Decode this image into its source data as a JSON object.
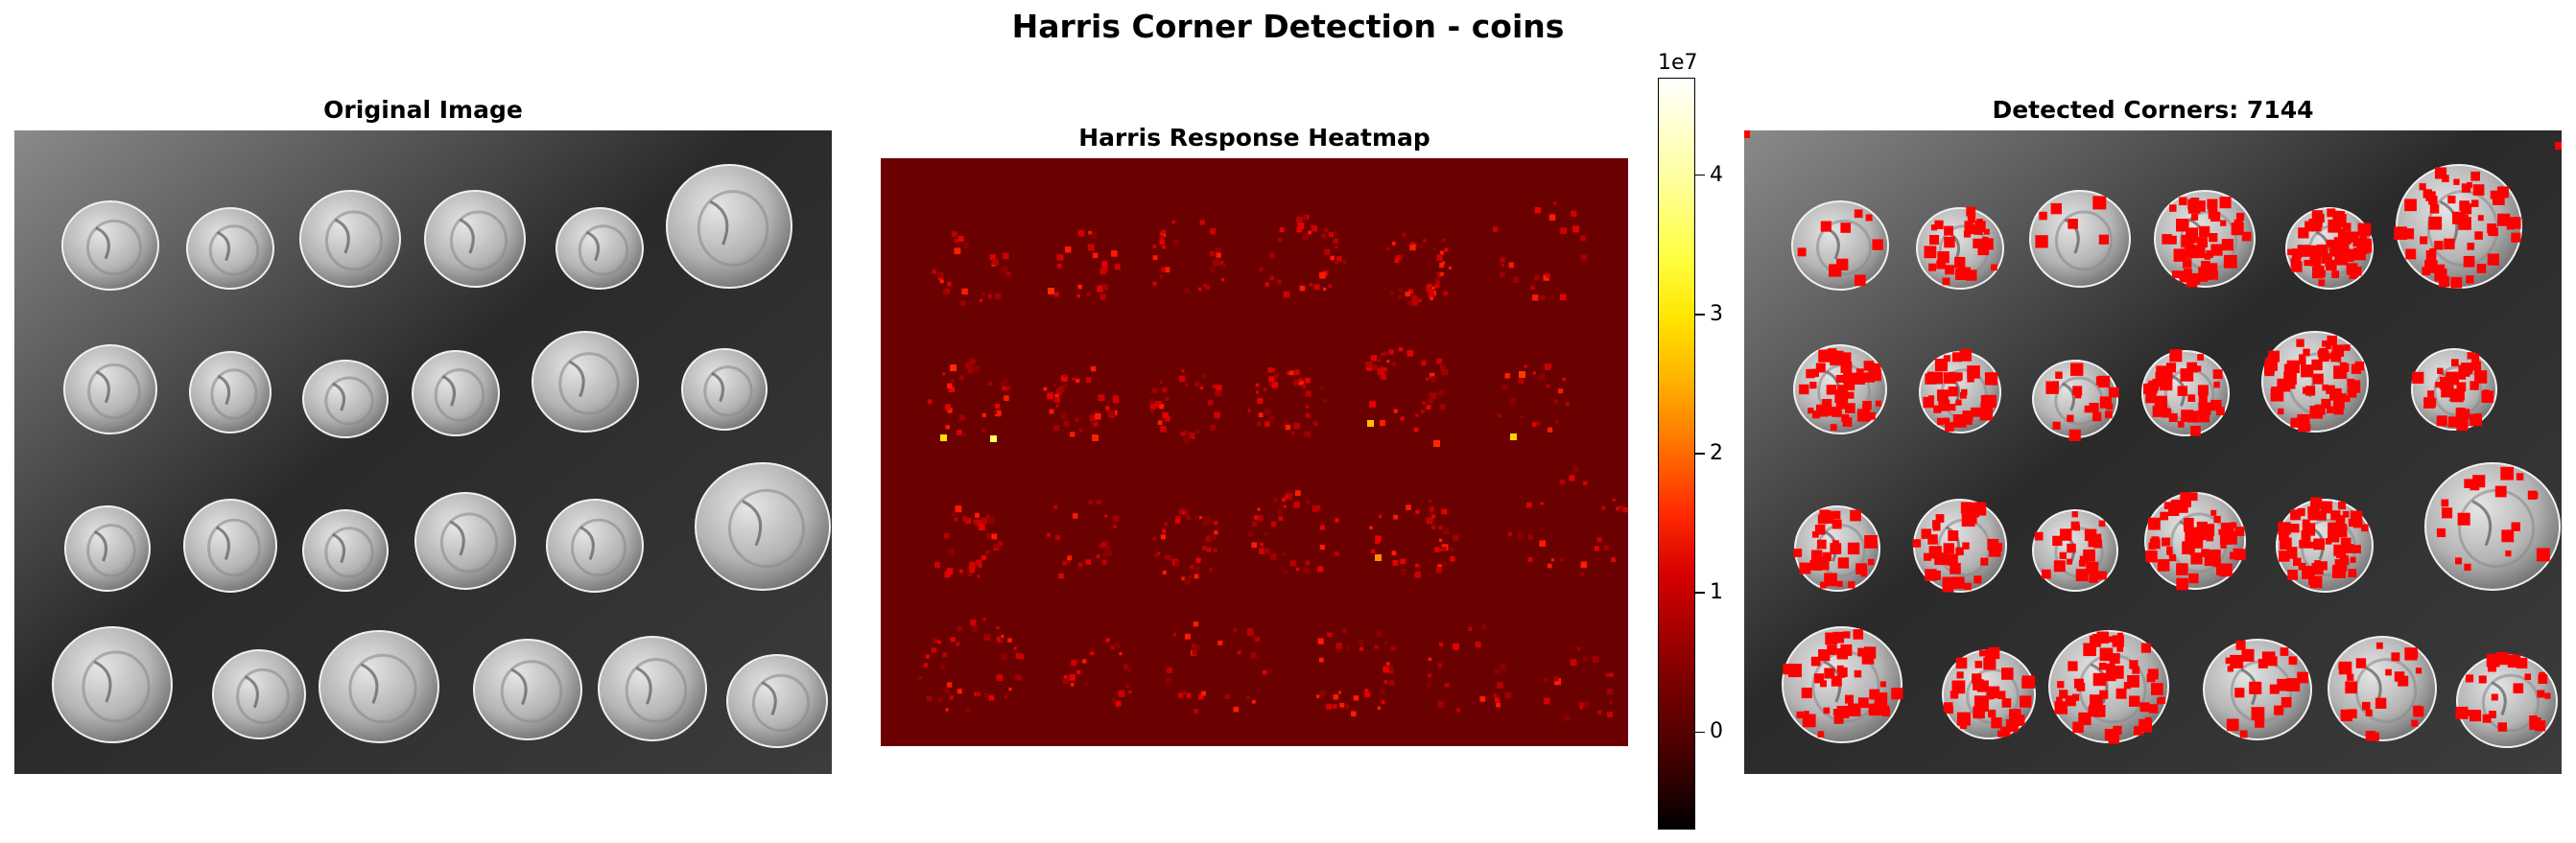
{
  "figure": {
    "suptitle": "Harris Corner Detection - coins"
  },
  "panels": {
    "original": {
      "title": "Original Image",
      "image": "grayscale photograph of 24 ancient coins on a dark background, 4 rows of 6"
    },
    "heatmap": {
      "title": "Harris Response Heatmap",
      "colormap": "hot"
    },
    "detected": {
      "title": "Detected Corners: 7144",
      "marker_color": "#ff0000"
    }
  },
  "chart_data": {
    "type": "heatmap",
    "title": "Harris Response Heatmap",
    "colorbar": {
      "multiplier_label": "1e7",
      "ticks": [
        0,
        1,
        2,
        3,
        4
      ],
      "tick_labels": [
        "0",
        "1",
        "2",
        "3",
        "4"
      ],
      "range": [
        -0.7,
        4.7
      ],
      "colormap": "hot"
    },
    "detected_corners": 7144,
    "coin_grid": {
      "rows": 4,
      "cols": 6
    }
  },
  "colors": {
    "background": "#ffffff",
    "heatmap_base": "#6b0000",
    "corner_marker": "#ff0000",
    "coin_background_dark": "#262626",
    "coin_background_light": "#6e6e6e"
  }
}
